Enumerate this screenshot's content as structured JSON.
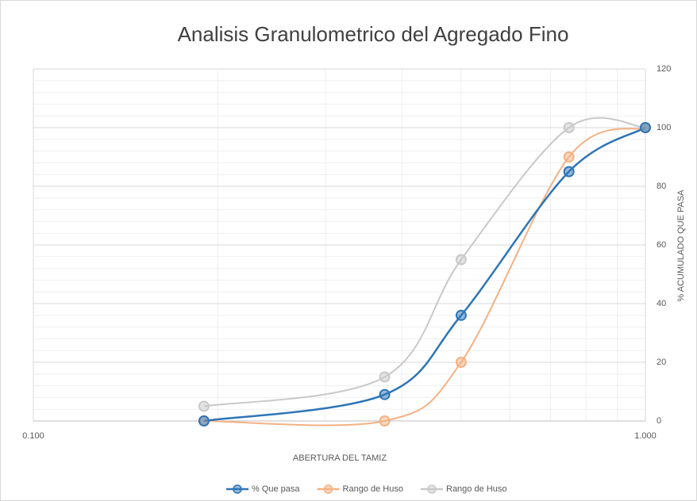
{
  "chart_data": {
    "type": "line",
    "title": "Analisis Granulometrico del Agregado Fino",
    "x_label": "ABERTURA DEL TAMIZ",
    "y_label": "% ACUMULADO QUE PASA",
    "x": [
      0.19,
      0.375,
      0.5,
      0.75,
      1.0
    ],
    "xscale": "log",
    "xlim": [
      0.1,
      1.0
    ],
    "xticks": [
      {
        "value": 0.1,
        "label": "0.100"
      },
      {
        "value": 1.0,
        "label": "1.000"
      }
    ],
    "ylim": [
      0,
      120
    ],
    "yticks": [
      0,
      20,
      40,
      60,
      80,
      100,
      120
    ],
    "y_axis_side": "right",
    "grid": true,
    "legend": "bottom",
    "series": [
      {
        "name": "% Que pasa",
        "color": "#2e75b6",
        "values": [
          0,
          9,
          36,
          85,
          100
        ]
      },
      {
        "name": "Rango de Huso",
        "color": "#f4b183",
        "values": [
          0,
          0,
          20,
          90,
          100
        ]
      },
      {
        "name": "Rango de Huso",
        "color": "#c9c9c9",
        "values": [
          5,
          15,
          55,
          100,
          100
        ]
      }
    ]
  }
}
